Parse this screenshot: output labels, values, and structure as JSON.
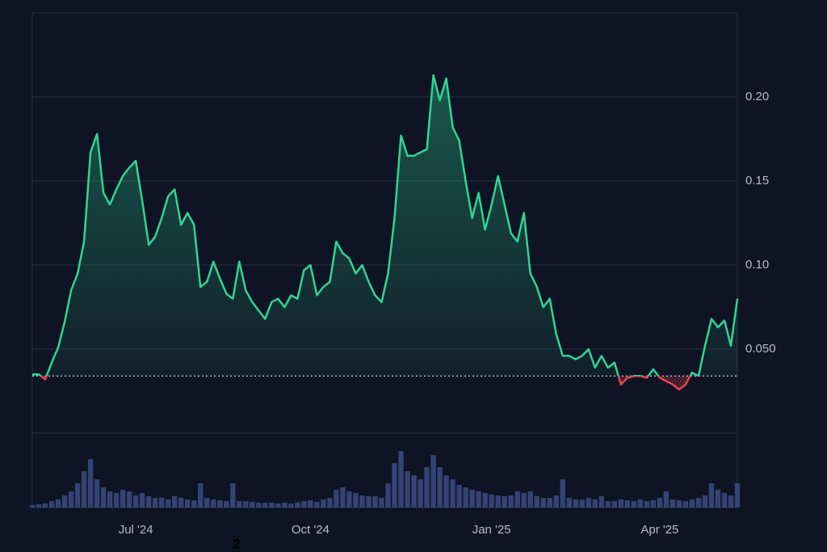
{
  "chart_data": {
    "type": "line",
    "categories": [
      null,
      null,
      null,
      null,
      null,
      null,
      null,
      null,
      null,
      null,
      null,
      null,
      null,
      null,
      null,
      null,
      "Jul '24",
      null,
      null,
      null,
      null,
      null,
      null,
      null,
      null,
      null,
      null,
      null,
      null,
      null,
      null,
      null,
      null,
      null,
      null,
      null,
      null,
      null,
      null,
      null,
      null,
      null,
      null,
      "Oct '24",
      null,
      null,
      null,
      null,
      null,
      null,
      null,
      null,
      null,
      null,
      null,
      null,
      null,
      null,
      null,
      null,
      null,
      null,
      null,
      null,
      null,
      null,
      null,
      null,
      null,
      null,
      null,
      "Jan '25",
      null,
      null,
      null,
      null,
      null,
      null,
      null,
      null,
      null,
      null,
      null,
      null,
      null,
      null,
      null,
      null,
      null,
      null,
      null,
      null,
      null,
      null,
      null,
      null,
      null,
      "Apr '25",
      null,
      null,
      null,
      null,
      null,
      null,
      null,
      null,
      null,
      null,
      null,
      null
    ],
    "values": [
      0.035,
      0.035,
      0.032,
      0.042,
      0.051,
      0.066,
      0.085,
      0.095,
      0.114,
      0.167,
      0.178,
      0.143,
      0.136,
      0.145,
      0.153,
      0.158,
      0.162,
      0.138,
      0.112,
      0.117,
      0.128,
      0.141,
      0.145,
      0.124,
      0.131,
      0.124,
      0.087,
      0.09,
      0.102,
      0.092,
      0.083,
      0.08,
      0.102,
      0.085,
      0.078,
      0.073,
      0.068,
      0.078,
      0.08,
      0.075,
      0.082,
      0.08,
      0.097,
      0.1,
      0.082,
      0.087,
      0.09,
      0.114,
      0.107,
      0.104,
      0.095,
      0.1,
      0.09,
      0.082,
      0.078,
      0.095,
      0.128,
      0.177,
      0.165,
      0.165,
      0.167,
      0.169,
      0.213,
      0.198,
      0.211,
      0.182,
      0.174,
      0.15,
      0.128,
      0.143,
      0.121,
      0.136,
      0.153,
      0.136,
      0.119,
      0.114,
      0.131,
      0.095,
      0.087,
      0.075,
      0.08,
      0.059,
      0.046,
      0.046,
      0.044,
      0.046,
      0.05,
      0.039,
      0.046,
      0.039,
      0.042,
      0.029,
      0.033,
      0.034,
      0.034,
      0.033,
      0.038,
      0.033,
      0.031,
      0.029,
      0.026,
      0.029,
      0.036,
      0.034,
      0.052,
      0.068,
      0.063,
      0.067,
      0.052,
      0.08
    ],
    "color": "#2fd595",
    "below_color": "#e5484d",
    "baseline": 0.034,
    "ylim": [
      0,
      0.25
    ],
    "yticks": [
      {
        "value": 0.05,
        "label": "0.050"
      },
      {
        "value": 0.1,
        "label": "0.10"
      },
      0.15,
      {
        "value": 0.2,
        "label": "0.20"
      }
    ],
    "grid": true,
    "volume": {
      "color": "#3b4a82",
      "ylim": [
        0,
        92
      ],
      "values": [
        3,
        4,
        5,
        8,
        10,
        15,
        20,
        30,
        45,
        60,
        35,
        25,
        20,
        18,
        22,
        20,
        15,
        18,
        14,
        12,
        12,
        10,
        14,
        12,
        10,
        9,
        30,
        12,
        10,
        9,
        8,
        30,
        8,
        8,
        7,
        6,
        6,
        6,
        5,
        6,
        5,
        6,
        8,
        9,
        7,
        10,
        12,
        22,
        25,
        20,
        18,
        15,
        14,
        14,
        12,
        30,
        55,
        70,
        45,
        40,
        35,
        50,
        65,
        50,
        40,
        35,
        28,
        25,
        22,
        20,
        18,
        16,
        15,
        14,
        15,
        20,
        18,
        20,
        14,
        12,
        12,
        15,
        35,
        12,
        10,
        10,
        12,
        10,
        14,
        8,
        8,
        10,
        9,
        8,
        10,
        8,
        9,
        12,
        20,
        10,
        9,
        8,
        10,
        12,
        15,
        30,
        22,
        18,
        15,
        30
      ]
    },
    "annotation": "2"
  }
}
